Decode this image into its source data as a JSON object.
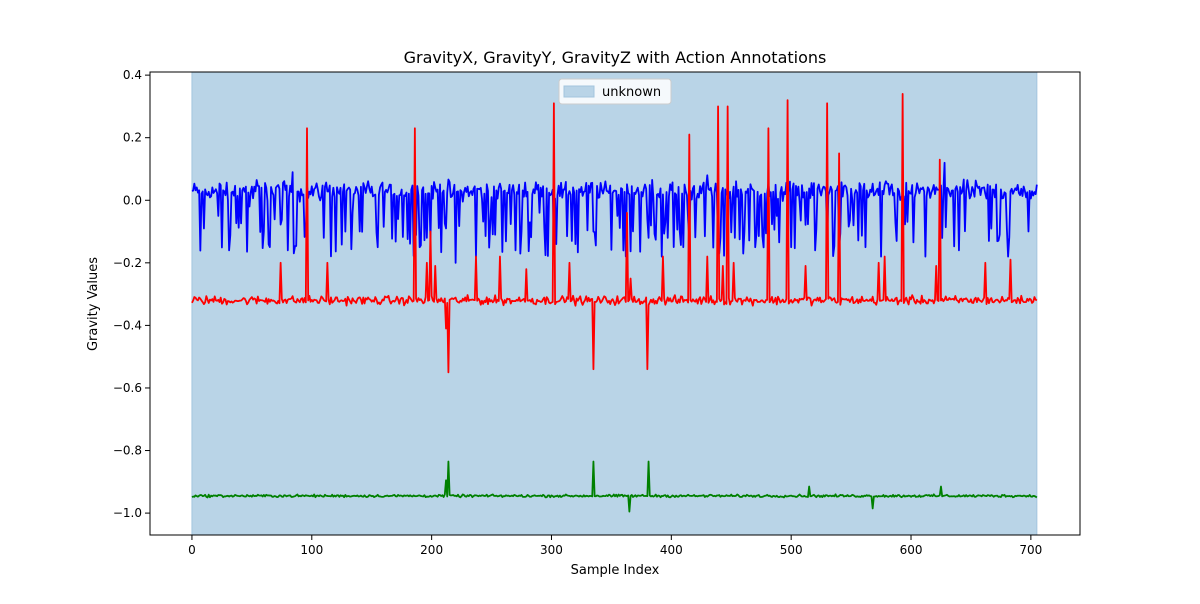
{
  "chart_data": {
    "type": "line",
    "title": "GravityX, GravityY, GravityZ with Action Annotations",
    "xlabel": "Sample Index",
    "ylabel": "Gravity Values",
    "xlim": [
      -35,
      741
    ],
    "ylim": [
      -1.07,
      0.41
    ],
    "xticks": [
      0,
      100,
      200,
      300,
      400,
      500,
      600,
      700
    ],
    "yticks": [
      -1.0,
      -0.8,
      -0.6,
      -0.4,
      -0.2,
      0.0,
      0.2,
      0.4
    ],
    "grid": false,
    "legend": {
      "placement": "upper center",
      "entries": [
        {
          "label": "unknown",
          "color": "#b9d4e7"
        }
      ]
    },
    "annotations": [
      {
        "label": "unknown",
        "x_start": 0,
        "x_end": 705,
        "color": "#b9d4e7"
      }
    ],
    "series": [
      {
        "color": "#0000ff",
        "baseline": 0.03,
        "noise": 0.045,
        "dip_prob": 0.18,
        "dip_depth": [
          -0.18,
          -0.06
        ],
        "x": [
          0,
          705
        ],
        "points": [
          [
            0,
            0.03
          ],
          [
            10,
            -0.09
          ],
          [
            22,
            -0.05
          ],
          [
            31,
            -0.16
          ],
          [
            48,
            -0.02
          ],
          [
            60,
            -0.1
          ],
          [
            80,
            -0.16
          ],
          [
            84,
            0.09
          ],
          [
            95,
            -0.1
          ],
          [
            110,
            -0.12
          ],
          [
            134,
            -0.04
          ],
          [
            155,
            -0.15
          ],
          [
            172,
            -0.06
          ],
          [
            190,
            -0.15
          ],
          [
            196,
            -0.12
          ],
          [
            212,
            -0.09
          ],
          [
            220,
            -0.2
          ],
          [
            237,
            -0.18
          ],
          [
            253,
            -0.11
          ],
          [
            270,
            -0.16
          ],
          [
            290,
            -0.04
          ],
          [
            304,
            -0.14
          ],
          [
            320,
            -0.14
          ],
          [
            335,
            -0.1
          ],
          [
            355,
            -0.05
          ],
          [
            381,
            -0.12
          ],
          [
            392,
            -0.18
          ],
          [
            410,
            -0.15
          ],
          [
            430,
            0.08
          ],
          [
            440,
            -0.17
          ],
          [
            453,
            -0.12
          ],
          [
            470,
            -0.15
          ],
          [
            488,
            -0.05
          ],
          [
            500,
            -0.15
          ],
          [
            520,
            -0.16
          ],
          [
            540,
            -0.15
          ],
          [
            552,
            -0.08
          ],
          [
            562,
            -0.15
          ],
          [
            575,
            -0.18
          ],
          [
            588,
            -0.13
          ],
          [
            612,
            -0.18
          ],
          [
            628,
            0.12
          ],
          [
            640,
            -0.16
          ],
          [
            665,
            -0.13
          ],
          [
            681,
            -0.18
          ],
          [
            695,
            0.03
          ],
          [
            705,
            0.05
          ]
        ]
      },
      {
        "color": "#ff0000",
        "baseline": -0.32,
        "noise": 0.02,
        "x": [
          0,
          705
        ],
        "spikes": [
          [
            74,
            -0.2
          ],
          [
            96,
            0.23
          ],
          [
            113,
            -0.2
          ],
          [
            186,
            0.23
          ],
          [
            196,
            -0.2
          ],
          [
            199,
            -0.1
          ],
          [
            203,
            -0.21
          ],
          [
            212,
            -0.41
          ],
          [
            214,
            -0.55
          ],
          [
            237,
            -0.18
          ],
          [
            257,
            -0.18
          ],
          [
            279,
            -0.22
          ],
          [
            302,
            0.31
          ],
          [
            315,
            -0.2
          ],
          [
            335,
            -0.54
          ],
          [
            363,
            -0.04
          ],
          [
            366,
            -0.25
          ],
          [
            380,
            -0.54
          ],
          [
            393,
            -0.18
          ],
          [
            415,
            0.21
          ],
          [
            430,
            -0.18
          ],
          [
            439,
            0.3
          ],
          [
            443,
            -0.21
          ],
          [
            447,
            0.3
          ],
          [
            452,
            -0.2
          ],
          [
            481,
            0.23
          ],
          [
            497,
            0.32
          ],
          [
            512,
            -0.21
          ],
          [
            530,
            0.31
          ],
          [
            540,
            0.15
          ],
          [
            573,
            -0.2
          ],
          [
            578,
            -0.18
          ],
          [
            593,
            0.34
          ],
          [
            621,
            -0.21
          ],
          [
            624,
            0.13
          ],
          [
            662,
            -0.2
          ],
          [
            683,
            -0.19
          ]
        ]
      },
      {
        "color": "#008000",
        "baseline": -0.945,
        "noise": 0.006,
        "x": [
          0,
          705
        ],
        "spikes": [
          [
            214,
            -0.835
          ],
          [
            335,
            -0.835
          ],
          [
            365,
            -0.995
          ],
          [
            381,
            -0.835
          ],
          [
            515,
            -0.915
          ],
          [
            568,
            -0.985
          ],
          [
            625,
            -0.915
          ],
          [
            212,
            -0.895
          ]
        ]
      }
    ]
  }
}
